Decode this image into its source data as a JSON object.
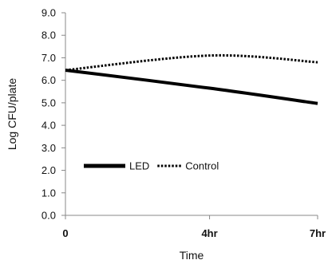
{
  "chart_data": {
    "type": "line",
    "categories": [
      "0",
      "4hr",
      "7hr"
    ],
    "x": [
      0,
      4,
      7
    ],
    "xlabel": "Time",
    "ylabel": "Log CFU/plate",
    "ylim": [
      0,
      9
    ],
    "yticks": [
      "0.0",
      "1.0",
      "2.0",
      "3.0",
      "4.0",
      "5.0",
      "6.0",
      "7.0",
      "8.0",
      "9.0"
    ],
    "grid": false,
    "legend": "inside-lower-left",
    "series": [
      {
        "name": "LED",
        "values": [
          6.45,
          5.65,
          4.97
        ],
        "color": "#000000",
        "style": "solid"
      },
      {
        "name": "Control",
        "values": [
          6.45,
          7.1,
          6.8
        ],
        "color": "#000000",
        "style": "dotted"
      }
    ]
  }
}
